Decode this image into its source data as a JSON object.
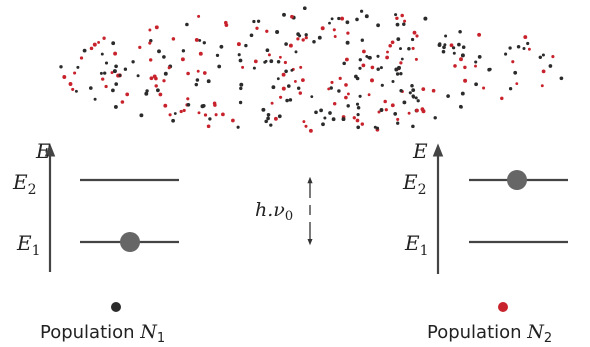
{
  "colors": {
    "population_1": "#2b2b2b",
    "population_2": "#c8232c",
    "electron": "#666666",
    "line": "#444444"
  },
  "left": {
    "axis_label": "E",
    "upper_level": "E",
    "upper_sub": "2",
    "lower_level": "E",
    "lower_sub": "1",
    "electron_on": "lower",
    "caption": "Population ",
    "caption_var": "N",
    "caption_sub": "1"
  },
  "right": {
    "axis_label": "E",
    "upper_level": "E",
    "upper_sub": "2",
    "lower_level": "E",
    "lower_sub": "1",
    "electron_on": "upper",
    "caption": "Population ",
    "caption_var": "N",
    "caption_sub": "2"
  },
  "gap": {
    "label": "h.ν",
    "sub": "0"
  }
}
